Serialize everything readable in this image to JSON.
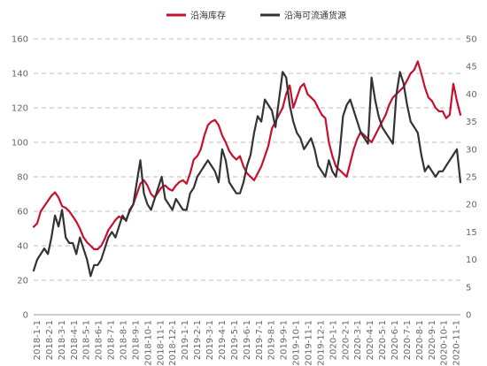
{
  "chart_data": {
    "type": "line",
    "legend_position": "top-center",
    "grid": "horizontal-dashed",
    "left_axis": {
      "min": 0,
      "max": 160,
      "ticks": [
        0,
        20,
        40,
        60,
        80,
        100,
        120,
        140,
        160
      ]
    },
    "right_axis": {
      "min": 0,
      "max": 50,
      "ticks": [
        0,
        5,
        10,
        15,
        20,
        25,
        30,
        35,
        40,
        45,
        50
      ]
    },
    "x_labels": [
      "2018-1-1",
      "2018-2-1",
      "2018-3-1",
      "2018-4-1",
      "2018-5-1",
      "2018-6-1",
      "2018-7-1",
      "2018-8-1",
      "2018-9-1",
      "2018-10-1",
      "2018-11-1",
      "2018-12-1",
      "2019-1-1",
      "2019-2-1",
      "2019-3-1",
      "2019-4-1",
      "2019-5-1",
      "2019-6-1",
      "2019-7-1",
      "2019-8-1",
      "2019-9-1",
      "2019-10-1",
      "2019-11-1",
      "2019-12-1",
      "2020-1-1",
      "2020-2-1",
      "2020-3-1",
      "2020-4-1",
      "2020-5-1",
      "2020-6-1",
      "2020-7-1",
      "2020-8-1",
      "2020-9-1",
      "2020-10-1",
      "2020-11-1"
    ],
    "series": [
      {
        "name": "沿海库存",
        "axis": "left",
        "color": "#c8102e",
        "values": [
          51,
          53,
          60,
          63,
          66,
          69,
          71,
          68,
          63,
          62,
          60,
          57,
          54,
          50,
          45,
          42,
          40,
          38,
          38,
          40,
          44,
          49,
          52,
          55,
          57,
          56,
          55,
          60,
          64,
          70,
          76,
          78,
          75,
          70,
          68,
          71,
          74,
          75,
          73,
          72,
          75,
          77,
          78,
          76,
          82,
          90,
          92,
          96,
          104,
          110,
          112,
          113,
          110,
          104,
          100,
          95,
          92,
          90,
          92,
          86,
          82,
          80,
          78,
          82,
          86,
          92,
          98,
          108,
          112,
          116,
          120,
          128,
          133,
          120,
          126,
          132,
          134,
          128,
          126,
          124,
          120,
          116,
          114,
          100,
          92,
          86,
          84,
          82,
          80,
          88,
          96,
          102,
          106,
          104,
          102,
          100,
          104,
          108,
          112,
          116,
          122,
          126,
          128,
          130,
          132,
          136,
          140,
          142,
          147,
          140,
          132,
          126,
          124,
          120,
          118,
          118,
          114,
          116,
          134,
          124,
          116
        ]
      },
      {
        "name": "沿海可流通货源",
        "axis": "right",
        "color": "#333333",
        "values": [
          8,
          10,
          11,
          12,
          11,
          14,
          18,
          16,
          19,
          14,
          13,
          13,
          11,
          14,
          12,
          10,
          7,
          9,
          9,
          10,
          12,
          14,
          15,
          14,
          16,
          18,
          17,
          19,
          20,
          24,
          28,
          22,
          20,
          19,
          21,
          23,
          25,
          21,
          20,
          19,
          21,
          20,
          19,
          19,
          22,
          23,
          25,
          26,
          27,
          28,
          27,
          26,
          24,
          30,
          28,
          24,
          23,
          22,
          22,
          24,
          27,
          29,
          33,
          36,
          35,
          39,
          38,
          37,
          34,
          39,
          44,
          43,
          38,
          35,
          33,
          32,
          30,
          31,
          32,
          30,
          27,
          26,
          25,
          28,
          26,
          25,
          29,
          36,
          38,
          39,
          37,
          35,
          33,
          32,
          31,
          43,
          39,
          36,
          34,
          33,
          32,
          31,
          40,
          44,
          42,
          38,
          35,
          34,
          33,
          29,
          26,
          27,
          26,
          25,
          26,
          26,
          27,
          28,
          29,
          30,
          24
        ]
      }
    ]
  }
}
